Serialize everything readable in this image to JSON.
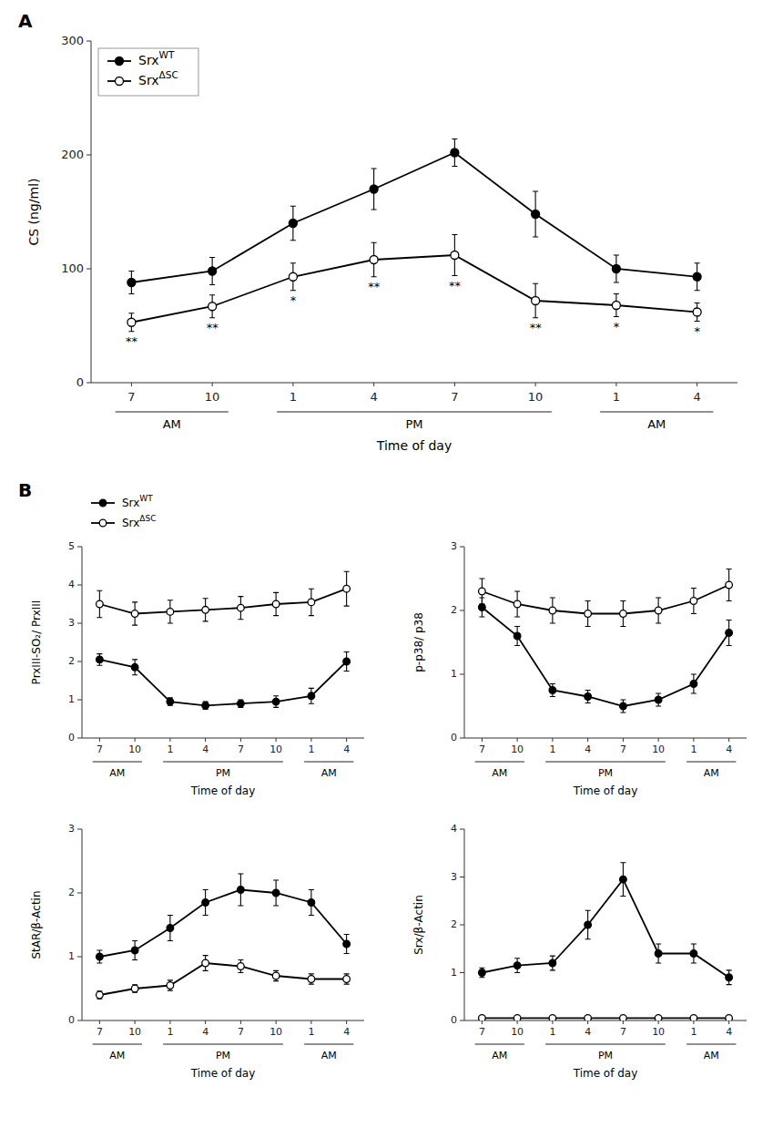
{
  "chart_data": [
    {
      "type": "line",
      "title": "A",
      "categories": [
        "7",
        "10",
        "1",
        "4",
        "7",
        "10",
        "1",
        "4"
      ],
      "ylabel": "CS (ng/ml)",
      "xlabel": "Time of day",
      "ylim": [
        0,
        300
      ],
      "yticks": [
        0,
        100,
        200,
        300
      ],
      "legend": "upper left",
      "series": [
        {
          "name": "SrxWT",
          "color": "black",
          "marker": "filled-circle",
          "values": [
            88,
            98,
            140,
            170,
            202,
            148,
            100,
            93
          ],
          "errors": [
            10,
            12,
            15,
            18,
            12,
            20,
            12,
            12
          ]
        },
        {
          "name": "SrxΔSC",
          "color": "black",
          "marker": "open-circle",
          "values": [
            53,
            67,
            93,
            108,
            112,
            72,
            68,
            62
          ],
          "errors": [
            8,
            10,
            12,
            15,
            18,
            15,
            10,
            8
          ]
        }
      ],
      "annotations": [
        {
          "text": "**",
          "x": 0
        },
        {
          "text": "**",
          "x": 1
        },
        {
          "text": "*",
          "x": 2
        },
        {
          "text": "**",
          "x": 3
        },
        {
          "text": "**",
          "x": 4
        },
        {
          "text": "**",
          "x": 5
        },
        {
          "text": "*",
          "x": 6
        },
        {
          "text": "*",
          "x": 7
        },
        {
          "text": "AM",
          "x": 0.5,
          "x_start": 0,
          "x_end": 1
        },
        {
          "text": "PM",
          "x": 3.5,
          "x_start": 2,
          "x_end": 5
        },
        {
          "text": "AM",
          "x": 6.5,
          "x_start": 6,
          "x_end": 7
        }
      ]
    },
    {
      "type": "line",
      "title": "B",
      "categories": [
        "7",
        "10",
        "1",
        "4",
        "7",
        "10",
        "1",
        "4"
      ],
      "ylabel": "PrxIII-SO₂/ PrxIII",
      "xlabel": "Time of day",
      "ylim": [
        0,
        5
      ],
      "yticks": [
        0,
        1,
        2,
        3,
        4,
        5
      ],
      "legend": "above",
      "series": [
        {
          "name": "SrxWT",
          "color": "black",
          "marker": "filled-circle",
          "values": [
            2.05,
            1.85,
            0.95,
            0.85,
            0.9,
            0.95,
            1.1,
            2.0
          ],
          "errors": [
            0.15,
            0.2,
            0.1,
            0.1,
            0.1,
            0.15,
            0.2,
            0.25
          ]
        },
        {
          "name": "SrxΔSC",
          "color": "black",
          "marker": "open-circle",
          "values": [
            3.5,
            3.25,
            3.3,
            3.35,
            3.4,
            3.5,
            3.55,
            3.9
          ],
          "errors": [
            0.35,
            0.3,
            0.3,
            0.3,
            0.3,
            0.3,
            0.35,
            0.45
          ]
        }
      ],
      "annotations": [
        {
          "text": "AM",
          "x": 0.5,
          "x_start": 0,
          "x_end": 1
        },
        {
          "text": "PM",
          "x": 3.5,
          "x_start": 2,
          "x_end": 5
        },
        {
          "text": "AM",
          "x": 6.5,
          "x_start": 6,
          "x_end": 7
        }
      ]
    },
    {
      "type": "line",
      "categories": [
        "7",
        "10",
        "1",
        "4",
        "7",
        "10",
        "1",
        "4"
      ],
      "ylabel": "p-p38/ p38",
      "xlabel": "Time of day",
      "ylim": [
        0,
        3
      ],
      "yticks": [
        0,
        1,
        2,
        3
      ],
      "series": [
        {
          "name": "SrxWT",
          "color": "black",
          "marker": "filled-circle",
          "values": [
            2.05,
            1.6,
            0.75,
            0.65,
            0.5,
            0.6,
            0.85,
            1.65
          ],
          "errors": [
            0.15,
            0.15,
            0.1,
            0.1,
            0.1,
            0.1,
            0.15,
            0.2
          ]
        },
        {
          "name": "SrxΔSC",
          "color": "black",
          "marker": "open-circle",
          "values": [
            2.3,
            2.1,
            2.0,
            1.95,
            1.95,
            2.0,
            2.15,
            2.4
          ],
          "errors": [
            0.2,
            0.2,
            0.2,
            0.2,
            0.2,
            0.2,
            0.2,
            0.25
          ]
        }
      ],
      "annotations": [
        {
          "text": "AM",
          "x": 0.5,
          "x_start": 0,
          "x_end": 1
        },
        {
          "text": "PM",
          "x": 3.5,
          "x_start": 2,
          "x_end": 5
        },
        {
          "text": "AM",
          "x": 6.5,
          "x_start": 6,
          "x_end": 7
        }
      ]
    },
    {
      "type": "line",
      "categories": [
        "7",
        "10",
        "1",
        "4",
        "7",
        "10",
        "1",
        "4"
      ],
      "ylabel": "StAR/β-Actin",
      "xlabel": "Time of day",
      "ylim": [
        0,
        3
      ],
      "yticks": [
        0,
        1,
        2,
        3
      ],
      "series": [
        {
          "name": "SrxWT",
          "color": "black",
          "marker": "filled-circle",
          "values": [
            1.0,
            1.1,
            1.45,
            1.85,
            2.05,
            2.0,
            1.85,
            1.2
          ],
          "errors": [
            0.1,
            0.15,
            0.2,
            0.2,
            0.25,
            0.2,
            0.2,
            0.15
          ]
        },
        {
          "name": "SrxΔSC",
          "color": "black",
          "marker": "open-circle",
          "values": [
            0.4,
            0.5,
            0.55,
            0.9,
            0.85,
            0.7,
            0.65,
            0.65
          ],
          "errors": [
            0.06,
            0.06,
            0.08,
            0.12,
            0.1,
            0.08,
            0.08,
            0.08
          ]
        }
      ],
      "annotations": [
        {
          "text": "AM",
          "x": 0.5,
          "x_start": 0,
          "x_end": 1
        },
        {
          "text": "PM",
          "x": 3.5,
          "x_start": 2,
          "x_end": 5
        },
        {
          "text": "AM",
          "x": 6.5,
          "x_start": 6,
          "x_end": 7
        }
      ]
    },
    {
      "type": "line",
      "categories": [
        "7",
        "10",
        "1",
        "4",
        "7",
        "10",
        "1",
        "4"
      ],
      "ylabel": "Srx/β-Actin",
      "xlabel": "Time of day",
      "ylim": [
        0,
        4
      ],
      "yticks": [
        0,
        1,
        2,
        3,
        4
      ],
      "series": [
        {
          "name": "SrxWT",
          "color": "black",
          "marker": "filled-circle",
          "values": [
            1.0,
            1.15,
            1.2,
            2.0,
            2.95,
            1.4,
            1.4,
            0.9
          ],
          "errors": [
            0.1,
            0.15,
            0.15,
            0.3,
            0.35,
            0.2,
            0.2,
            0.15
          ]
        },
        {
          "name": "SrxΔSC",
          "color": "black",
          "marker": "open-circle",
          "values": [
            0.05,
            0.05,
            0.05,
            0.05,
            0.05,
            0.05,
            0.05,
            0.05
          ],
          "errors": [
            0.02,
            0.02,
            0.02,
            0.02,
            0.02,
            0.02,
            0.02,
            0.02
          ]
        }
      ],
      "annotations": [
        {
          "text": "AM",
          "x": 0.5,
          "x_start": 0,
          "x_end": 1
        },
        {
          "text": "PM",
          "x": 3.5,
          "x_start": 2,
          "x_end": 5
        },
        {
          "text": "AM",
          "x": 6.5,
          "x_start": 6,
          "x_end": 7
        }
      ]
    }
  ]
}
